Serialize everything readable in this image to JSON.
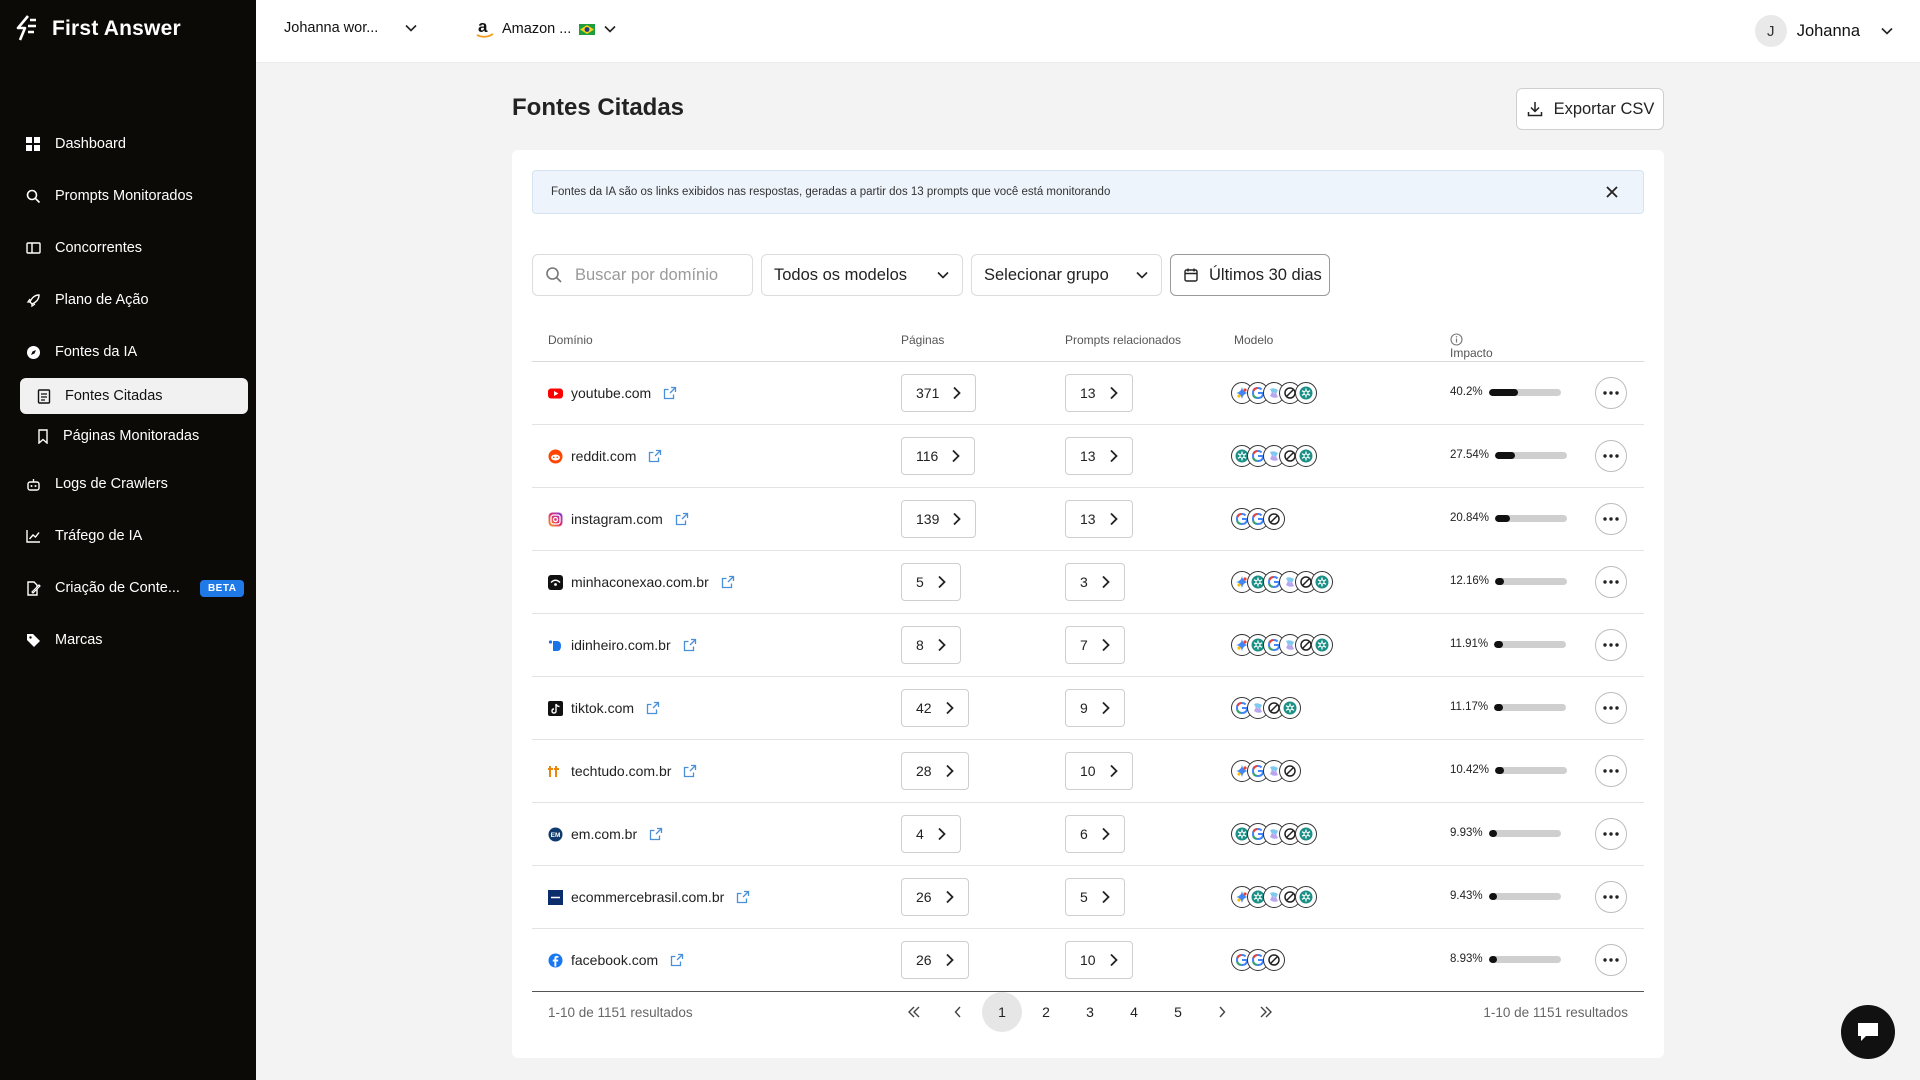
{
  "app": {
    "name": "First Answer"
  },
  "sidebar": {
    "items": [
      {
        "label": "Dashboard",
        "icon": "grid-icon"
      },
      {
        "label": "Prompts Monitorados",
        "icon": "search-icon"
      },
      {
        "label": "Concorrentes",
        "icon": "compare-icon"
      },
      {
        "label": "Plano de Ação",
        "icon": "rocket-icon"
      },
      {
        "label": "Fontes da IA",
        "icon": "compass-icon"
      }
    ],
    "sub_items": [
      {
        "label": "Fontes Citadas",
        "icon": "document-icon",
        "active": true
      },
      {
        "label": "Páginas Monitoradas",
        "icon": "bookmark-icon",
        "active": false
      }
    ],
    "items_after": [
      {
        "label": "Logs de Crawlers",
        "icon": "robot-icon"
      },
      {
        "label": "Tráfego de IA",
        "icon": "chart-icon"
      },
      {
        "label": "Criação de Conte...",
        "icon": "edit-file-icon",
        "badge": "BETA"
      },
      {
        "label": "Marcas",
        "icon": "tag-icon"
      }
    ]
  },
  "topbar": {
    "workspace": "Johanna wor...",
    "brand": "Amazon ...",
    "user": {
      "initial": "J",
      "name": "Johanna"
    }
  },
  "page": {
    "title": "Fontes Citadas",
    "export_label": "Exportar CSV",
    "info": "Fontes da IA são os links exibidos nas respostas, geradas a partir dos 13 prompts que você está monitorando"
  },
  "filters": {
    "search_placeholder": "Buscar por domínio",
    "models": "Todos os modelos",
    "group": "Selecionar grupo",
    "date": "Últimos 30 dias"
  },
  "table": {
    "headers": {
      "domain": "Domínio",
      "pages": "Páginas",
      "prompts": "Prompts relacionados",
      "model": "Modelo",
      "impact": "Impacto"
    },
    "rows": [
      {
        "domain": "youtube.com",
        "pages": "371",
        "prompts": "13",
        "impact": "40.2%",
        "impact_value": 0.402,
        "favicon": "youtube",
        "models": [
          "gemini",
          "google",
          "copilot",
          "perplexity",
          "chatgpt"
        ]
      },
      {
        "domain": "reddit.com",
        "pages": "116",
        "prompts": "13",
        "impact": "27.54%",
        "impact_value": 0.2754,
        "favicon": "reddit",
        "models": [
          "chatgpt",
          "google",
          "copilot",
          "perplexity",
          "chatgpt"
        ]
      },
      {
        "domain": "instagram.com",
        "pages": "139",
        "prompts": "13",
        "impact": "20.84%",
        "impact_value": 0.2084,
        "favicon": "instagram",
        "models": [
          "google",
          "google",
          "perplexity"
        ]
      },
      {
        "domain": "minhaconexao.com.br",
        "pages": "5",
        "prompts": "3",
        "impact": "12.16%",
        "impact_value": 0.1216,
        "favicon": "minhaconexao",
        "models": [
          "gemini",
          "chatgpt",
          "google",
          "copilot",
          "perplexity",
          "chatgpt"
        ]
      },
      {
        "domain": "idinheiro.com.br",
        "pages": "8",
        "prompts": "7",
        "impact": "11.91%",
        "impact_value": 0.1191,
        "favicon": "idinheiro",
        "models": [
          "gemini",
          "chatgpt",
          "google",
          "copilot",
          "perplexity",
          "chatgpt"
        ]
      },
      {
        "domain": "tiktok.com",
        "pages": "42",
        "prompts": "9",
        "impact": "11.17%",
        "impact_value": 0.1117,
        "favicon": "tiktok",
        "models": [
          "google",
          "copilot",
          "perplexity",
          "chatgpt"
        ]
      },
      {
        "domain": "techtudo.com.br",
        "pages": "28",
        "prompts": "10",
        "impact": "10.42%",
        "impact_value": 0.1042,
        "favicon": "techtudo",
        "models": [
          "gemini",
          "google",
          "copilot",
          "perplexity"
        ]
      },
      {
        "domain": "em.com.br",
        "pages": "4",
        "prompts": "6",
        "impact": "9.93%",
        "impact_value": 0.0993,
        "favicon": "em",
        "models": [
          "chatgpt",
          "google",
          "copilot",
          "perplexity",
          "chatgpt"
        ]
      },
      {
        "domain": "ecommercebrasil.com.br",
        "pages": "26",
        "prompts": "5",
        "impact": "9.43%",
        "impact_value": 0.0943,
        "favicon": "ecommercebrasil",
        "models": [
          "gemini",
          "chatgpt",
          "copilot",
          "perplexity",
          "chatgpt"
        ]
      },
      {
        "domain": "facebook.com",
        "pages": "26",
        "prompts": "10",
        "impact": "8.93%",
        "impact_value": 0.0893,
        "favicon": "facebook",
        "models": [
          "google",
          "google",
          "perplexity"
        ]
      }
    ]
  },
  "pagination": {
    "summary": "1-10 de 1151 resultados",
    "pages": [
      "1",
      "2",
      "3",
      "4",
      "5"
    ],
    "current": "1"
  },
  "colors": {
    "sidebar_bg": "#0c0a07",
    "accent_blue": "#1f7ae8",
    "info_bg": "#eef4fb"
  }
}
